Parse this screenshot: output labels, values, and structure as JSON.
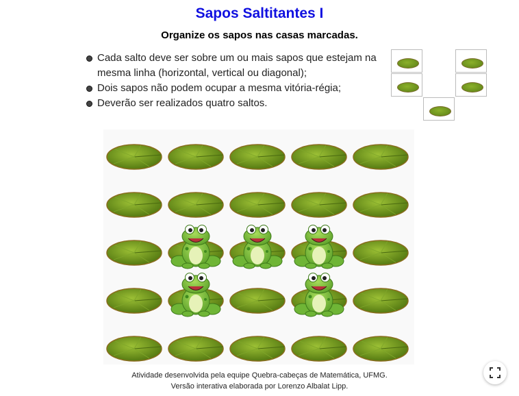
{
  "title": "Sapos Saltitantes I",
  "subtitle": "Organize os sapos nas casas marcadas.",
  "rules": [
    "Cada salto deve ser sobre um ou mais sapos que estejam na mesma linha (horizontal, vertical ou diagonal);",
    "Dois sapos não podem ocupar a mesma vitória-régia;",
    "Deverão ser realizados quatro saltos."
  ],
  "board": {
    "rows": 5,
    "cols": 5,
    "frogs": [
      {
        "row": 2,
        "col": 1
      },
      {
        "row": 2,
        "col": 2
      },
      {
        "row": 2,
        "col": 3
      },
      {
        "row": 3,
        "col": 1
      },
      {
        "row": 3,
        "col": 3
      }
    ]
  },
  "target": {
    "rows": 3,
    "cols": 3,
    "cells": [
      {
        "row": 0,
        "col": 0
      },
      {
        "row": 0,
        "col": 2
      },
      {
        "row": 1,
        "col": 0
      },
      {
        "row": 1,
        "col": 2
      },
      {
        "row": 2,
        "col": 1
      }
    ]
  },
  "credits": {
    "line1": "Atividade desenvolvida pela equipe Quebra-cabeças de Matemática, UFMG.",
    "line2": "Versão interativa elaborada por Lorenzo Albalat Lipp."
  },
  "colors": {
    "title": "#1010e0",
    "pad": "#6b9420",
    "pad_rim": "#8a6d1e",
    "frog": "#7cc242"
  },
  "icons": {
    "fullscreen": "fullscreen-icon"
  }
}
